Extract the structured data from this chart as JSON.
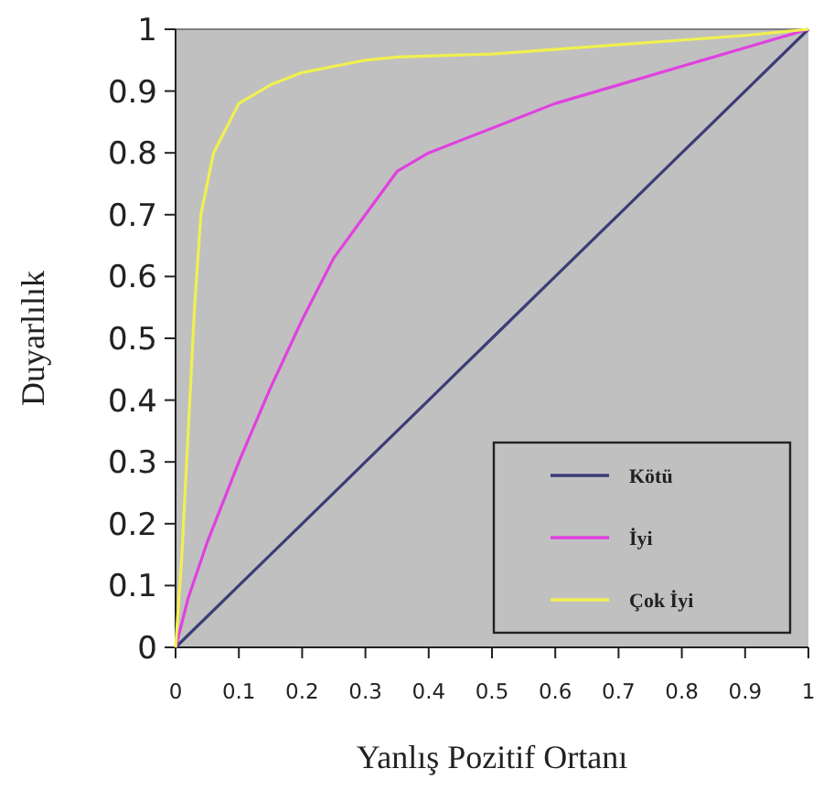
{
  "chart_data": {
    "type": "line",
    "xlabel": "Yanlış Pozitif Ortanı",
    "ylabel": "Duyarlılık",
    "xlim": [
      0,
      1
    ],
    "ylim": [
      0,
      1
    ],
    "xticks": [
      0,
      0.1,
      0.2,
      0.3,
      0.4,
      0.5,
      0.6,
      0.7,
      0.8,
      0.9,
      1
    ],
    "yticks": [
      0,
      0.1,
      0.2,
      0.3,
      0.4,
      0.5,
      0.6,
      0.7,
      0.8,
      0.9,
      1
    ],
    "grid": false,
    "legend": "bottom right",
    "marker": "none",
    "line_style": "solid",
    "series": [
      {
        "name": "Kötü",
        "color": "#3c3c78",
        "x": [
          0,
          0.1,
          0.2,
          0.3,
          0.4,
          0.5,
          0.6,
          0.7,
          0.8,
          0.9,
          1
        ],
        "values": [
          0,
          0.1,
          0.2,
          0.3,
          0.4,
          0.5,
          0.6,
          0.7,
          0.8,
          0.9,
          1
        ]
      },
      {
        "name": "İyi",
        "color": "#e040e0",
        "x": [
          0,
          0.02,
          0.05,
          0.1,
          0.15,
          0.2,
          0.25,
          0.3,
          0.35,
          0.4,
          0.5,
          0.6,
          0.7,
          0.8,
          0.9,
          1
        ],
        "values": [
          0,
          0.08,
          0.17,
          0.3,
          0.42,
          0.53,
          0.63,
          0.7,
          0.77,
          0.8,
          0.84,
          0.88,
          0.91,
          0.94,
          0.97,
          1
        ]
      },
      {
        "name": "Çok İyi",
        "color": "#f0f050",
        "x": [
          0,
          0.01,
          0.02,
          0.03,
          0.04,
          0.06,
          0.1,
          0.15,
          0.2,
          0.3,
          0.35,
          0.5,
          0.7,
          0.9,
          1
        ],
        "values": [
          0,
          0.15,
          0.35,
          0.55,
          0.7,
          0.8,
          0.88,
          0.91,
          0.93,
          0.95,
          0.955,
          0.96,
          0.975,
          0.99,
          1
        ]
      }
    ]
  }
}
